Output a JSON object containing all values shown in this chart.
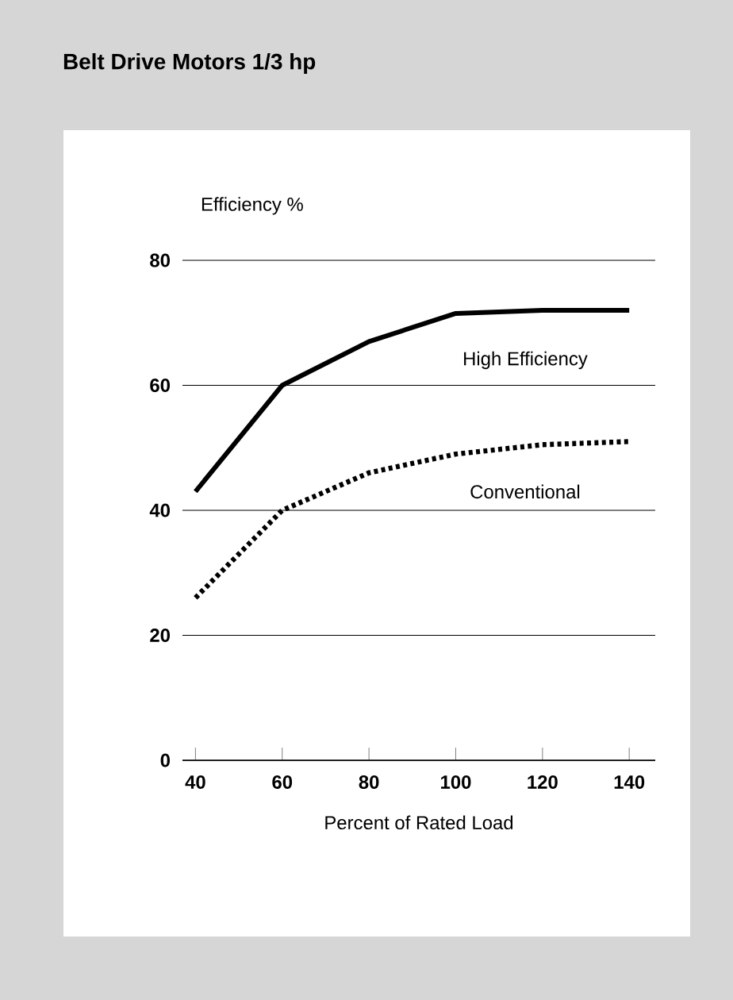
{
  "chart_data": {
    "type": "line",
    "title": "Belt Drive Motors 1/3 hp",
    "xlabel": "Percent of Rated Load",
    "ylabel": "Efficiency %",
    "xlim": [
      37,
      146
    ],
    "xticks": [
      40,
      60,
      80,
      100,
      120,
      140
    ],
    "ylim": [
      0,
      80
    ],
    "yticks": [
      0,
      20,
      40,
      60,
      80
    ],
    "grid": "y",
    "legend": false,
    "series": [
      {
        "name": "High Efficiency",
        "color": "#000000",
        "line_style": "solid",
        "x": [
          40,
          60,
          80,
          100,
          120,
          140
        ],
        "values": [
          43,
          60,
          67,
          71.5,
          72,
          72
        ]
      },
      {
        "name": "Conventional",
        "color": "#000000",
        "line_style": "dotted",
        "x": [
          40,
          60,
          70,
          80,
          90,
          100,
          120,
          140
        ],
        "values": [
          26,
          40,
          43,
          46,
          47.5,
          49,
          50.5,
          51
        ]
      }
    ]
  }
}
